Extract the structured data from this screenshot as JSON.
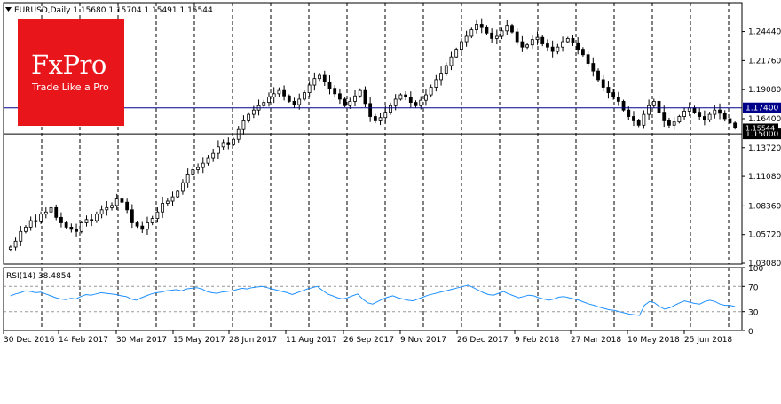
{
  "header": {
    "symbol": "EURUSD,Daily",
    "ohlc": "1.15680 1.15704 1.15491 1.15544"
  },
  "logo": {
    "brand": "FxPro",
    "tagline": "Trade Like a Pro",
    "color": "#e8161b"
  },
  "chart_data": [
    {
      "type": "candlestick",
      "title": "EURUSD,Daily",
      "ylim": [
        1.03,
        1.271
      ],
      "y_ticks": [
        "1.24440",
        "1.21760",
        "1.19080",
        "1.16400",
        "1.13720",
        "1.11080",
        "1.08360",
        "1.05720",
        "1.03080"
      ],
      "x_ticks": [
        "30 Dec 2016",
        "14 Feb 2017",
        "30 Mar 2017",
        "15 May 2017",
        "28 Jun 2017",
        "11 Aug 2017",
        "26 Sep 2017",
        "9 Nov 2017",
        "26 Dec 2017",
        "9 Feb 2018",
        "27 Mar 2018",
        "10 May 2018",
        "25 Jun 2018"
      ],
      "horizontal_levels": [
        {
          "value": 1.174,
          "label": "1.17400",
          "color": "#00008b"
        },
        {
          "value": 1.15,
          "label": "1.15000",
          "color": "#000000"
        }
      ],
      "current_price": {
        "value": 1.15544,
        "label": "1.15544"
      },
      "series": [
        {
          "values": [
            1.0455,
            1.051,
            1.06,
            1.064,
            1.07,
            1.069,
            1.076,
            1.078,
            1.082,
            1.073,
            1.068,
            1.064,
            1.062,
            1.06,
            1.068,
            1.071,
            1.07,
            1.076,
            1.08,
            1.082,
            1.084,
            1.09,
            1.087,
            1.08,
            1.068,
            1.065,
            1.062,
            1.068,
            1.072,
            1.078,
            1.086,
            1.088,
            1.092,
            1.097,
            1.105,
            1.113,
            1.117,
            1.119,
            1.123,
            1.128,
            1.132,
            1.138,
            1.142,
            1.14,
            1.145,
            1.154,
            1.162,
            1.168,
            1.172,
            1.176,
            1.179,
            1.184,
            1.187,
            1.19,
            1.185,
            1.18,
            1.177,
            1.182,
            1.188,
            1.195,
            1.201,
            1.204,
            1.198,
            1.192,
            1.187,
            1.182,
            1.176,
            1.18,
            1.185,
            1.19,
            1.178,
            1.166,
            1.162,
            1.165,
            1.17,
            1.176,
            1.182,
            1.186,
            1.184,
            1.179,
            1.176,
            1.181,
            1.186,
            1.193,
            1.2,
            1.206,
            1.213,
            1.221,
            1.228,
            1.235,
            1.24,
            1.246,
            1.251,
            1.248,
            1.243,
            1.238,
            1.24,
            1.245,
            1.25,
            1.244,
            1.235,
            1.23,
            1.232,
            1.237,
            1.239,
            1.233,
            1.23,
            1.226,
            1.23,
            1.235,
            1.238,
            1.234,
            1.228,
            1.223,
            1.215,
            1.208,
            1.2,
            1.193,
            1.188,
            1.184,
            1.18,
            1.172,
            1.166,
            1.162,
            1.158,
            1.168,
            1.176,
            1.18,
            1.17,
            1.162,
            1.158,
            1.161,
            1.166,
            1.171,
            1.174,
            1.17,
            1.166,
            1.163,
            1.168,
            1.172,
            1.169,
            1.164,
            1.16,
            1.1554
          ]
        }
      ]
    },
    {
      "type": "line",
      "title": "RSI(14) 38.4854",
      "ylim": [
        0,
        100
      ],
      "y_ticks": [
        "100",
        "70",
        "30",
        "0"
      ],
      "levels": [
        70,
        30
      ],
      "series": [
        {
          "name": "RSI(14)",
          "values": [
            55,
            58,
            60,
            63,
            62,
            60,
            61,
            58,
            55,
            52,
            50,
            49,
            51,
            50,
            54,
            57,
            56,
            58,
            60,
            59,
            58,
            57,
            55,
            54,
            50,
            48,
            52,
            55,
            58,
            60,
            61,
            63,
            64,
            65,
            63,
            66,
            67,
            68,
            66,
            62,
            60,
            59,
            61,
            62,
            63,
            65,
            67,
            66,
            68,
            69,
            70,
            68,
            66,
            64,
            62,
            60,
            57,
            60,
            63,
            66,
            68,
            70,
            64,
            58,
            55,
            52,
            50,
            52,
            55,
            58,
            50,
            44,
            42,
            46,
            50,
            53,
            55,
            52,
            50,
            48,
            47,
            50,
            53,
            56,
            58,
            60,
            62,
            64,
            66,
            68,
            70,
            72,
            68,
            64,
            60,
            57,
            56,
            59,
            62,
            58,
            55,
            52,
            54,
            56,
            55,
            52,
            50,
            48,
            50,
            53,
            54,
            52,
            50,
            48,
            45,
            42,
            40,
            37,
            35,
            33,
            32,
            30,
            28,
            26,
            25,
            24,
            40,
            46,
            44,
            38,
            34,
            36,
            40,
            44,
            47,
            45,
            43,
            42,
            46,
            48,
            46,
            42,
            40,
            40,
            38
          ]
        }
      ]
    }
  ]
}
